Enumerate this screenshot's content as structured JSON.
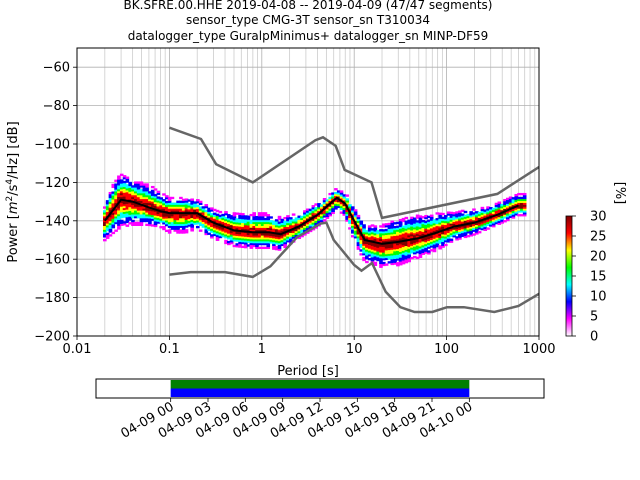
{
  "chart_data": [
    {
      "type": "heatmap",
      "title_lines": [
        "BK.SFRE.00.HHE   2019-04-08 -- 2019-04-09  (47/47 segments)",
        "sensor_type CMG-3T sensor_sn T310034",
        "datalogger_type GuralpMinimus+ datalogger_sn MINP-DF59"
      ],
      "xlabel": "Period [s]",
      "ylabel_parts": {
        "prefix": "Power [",
        "m": "m",
        "m_exp": "2",
        "sep1": "/s",
        "s_exp": "4",
        "sep2": "/Hz] [dB]"
      },
      "x_scale": "log",
      "xlim": [
        0.01,
        1000
      ],
      "ylim": [
        -200,
        -50
      ],
      "x_ticks": [
        {
          "value": 0.01,
          "label": "0.01"
        },
        {
          "value": 0.1,
          "label": "0.1"
        },
        {
          "value": 1,
          "label": "1"
        },
        {
          "value": 10,
          "label": "10"
        },
        {
          "value": 100,
          "label": "100"
        },
        {
          "value": 1000,
          "label": "1000"
        }
      ],
      "y_ticks": [
        {
          "value": -60,
          "label": "−60"
        },
        {
          "value": -80,
          "label": "−80"
        },
        {
          "value": -100,
          "label": "−100"
        },
        {
          "value": -120,
          "label": "−120"
        },
        {
          "value": -140,
          "label": "−140"
        },
        {
          "value": -160,
          "label": "−160"
        },
        {
          "value": -180,
          "label": "−180"
        },
        {
          "value": -200,
          "label": "−200"
        }
      ],
      "grid": true,
      "colorbar": {
        "label": "[%]",
        "range": [
          0,
          30
        ],
        "ticks": [
          {
            "value": 0,
            "label": "0"
          },
          {
            "value": 5,
            "label": "5"
          },
          {
            "value": 10,
            "label": "10"
          },
          {
            "value": 15,
            "label": "15"
          },
          {
            "value": 20,
            "label": "20"
          },
          {
            "value": 25,
            "label": "25"
          },
          {
            "value": 30,
            "label": "30"
          }
        ],
        "colors": [
          "#ffffff",
          "#ff00ff",
          "#0000ff",
          "#00ffff",
          "#00ff00",
          "#ffff00",
          "#ff0000",
          "#800000"
        ]
      },
      "noise_models": {
        "color": "#666666",
        "high": {
          "period": [
            0.1,
            0.22,
            0.32,
            0.8,
            3.8,
            4.6,
            6.3,
            7.9,
            15.4,
            20,
            354.8,
            1000
          ],
          "db": [
            -91.5,
            -97.4,
            -110.5,
            -120.0,
            -98.0,
            -96.5,
            -101.0,
            -113.5,
            -120.0,
            -138.5,
            -126.0,
            -112.0
          ]
        },
        "low": {
          "period": [
            0.1,
            0.17,
            0.4,
            0.8,
            1.24,
            2.4,
            4.3,
            5.0,
            6.0,
            10.0,
            12.0,
            15.6,
            21.9,
            31.6,
            45.0,
            70.0,
            101.0,
            154.0,
            328.0,
            600.0,
            1000.0
          ],
          "db": [
            -168.0,
            -166.7,
            -166.7,
            -169.2,
            -163.7,
            -148.6,
            -141.5,
            -141.0,
            -150.0,
            -163.0,
            -166.0,
            -162.0,
            -177.0,
            -185.0,
            -187.5,
            -187.5,
            -185.0,
            -185.0,
            -187.5,
            -184.4,
            -178.0
          ]
        }
      },
      "mode_curve": {
        "color": "#000000",
        "period": [
          0.02,
          0.025,
          0.03,
          0.04,
          0.06,
          0.08,
          0.1,
          0.15,
          0.2,
          0.3,
          0.5,
          0.8,
          1.2,
          1.6,
          2.5,
          4.0,
          5.5,
          6.5,
          8.0,
          10.0,
          13.0,
          20.0,
          30.0,
          50.0,
          80.0,
          120.0,
          200.0,
          350.0,
          600.0
        ],
        "db": [
          -140,
          -134,
          -129,
          -130,
          -133,
          -135,
          -136,
          -136,
          -136,
          -141,
          -145,
          -146,
          -146,
          -147,
          -143,
          -137,
          -131,
          -128,
          -131,
          -140,
          -150,
          -152,
          -151,
          -149,
          -146,
          -143,
          -141,
          -137,
          -132
        ]
      },
      "pdf_cloud": {
        "period_range": [
          0.02,
          700
        ],
        "spread_db_lower": [
          10,
          12,
          14,
          12,
          9,
          8,
          10,
          10,
          8,
          8,
          8,
          8,
          8,
          8,
          6,
          6,
          6,
          6,
          6,
          10,
          11,
          12,
          12,
          10,
          9,
          7,
          6,
          5,
          5
        ],
        "spread_db_upper": [
          8,
          14,
          14,
          12,
          12,
          10,
          8,
          8,
          7,
          7,
          9,
          10,
          10,
          9,
          7,
          6,
          5,
          5,
          6,
          7,
          8,
          10,
          12,
          12,
          10,
          8,
          7,
          6,
          6
        ]
      }
    },
    {
      "type": "timeline",
      "x_ticks": [
        {
          "label": "04-09 00"
        },
        {
          "label": "04-09 03"
        },
        {
          "label": "04-09 06"
        },
        {
          "label": "04-09 09"
        },
        {
          "label": "04-09 12"
        },
        {
          "label": "04-09 15"
        },
        {
          "label": "04-09 18"
        },
        {
          "label": "04-09 21"
        },
        {
          "label": "04-10 00"
        }
      ],
      "range_hours": [
        -6,
        30
      ],
      "coverage_start_hour": 0,
      "coverage_end_hour": 24,
      "bands": [
        {
          "fraction": 0.5,
          "color": "#008000"
        },
        {
          "fraction": 0.5,
          "color": "#0000ff"
        }
      ]
    }
  ]
}
